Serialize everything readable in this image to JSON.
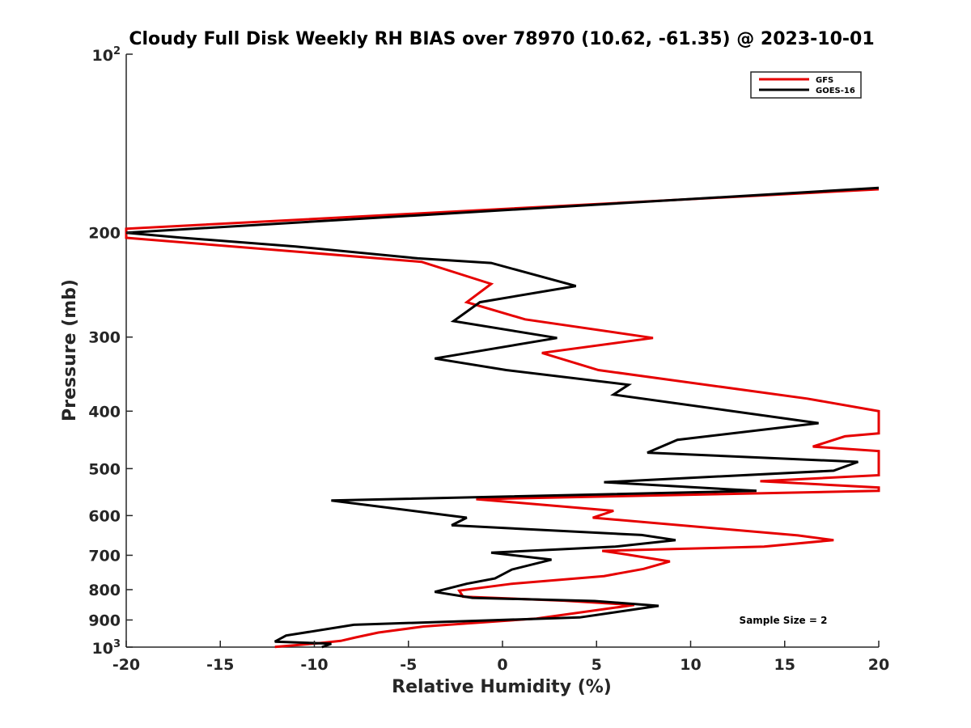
{
  "chart_data": {
    "type": "line",
    "title": "Cloudy Full Disk Weekly RH BIAS over 78970 (10.62, -61.35) @ 2023-10-01",
    "xlabel": "Relative Humidity (%)",
    "ylabel": "Pressure (mb)",
    "xlim": [
      -20,
      20
    ],
    "ylim": [
      100,
      1000
    ],
    "yscale": "log",
    "y_reversed": true,
    "grid": false,
    "legend_position": "top-right",
    "x_ticks": [
      "-20",
      "-15",
      "-10",
      "-5",
      "0",
      "5",
      "10",
      "15",
      "20"
    ],
    "y_ticks": [
      {
        "value": 100,
        "base": "10",
        "exp": "2"
      },
      {
        "value": 200,
        "label": "200"
      },
      {
        "value": 300,
        "label": "300"
      },
      {
        "value": 400,
        "label": "400"
      },
      {
        "value": 500,
        "label": "500"
      },
      {
        "value": 600,
        "label": "600"
      },
      {
        "value": 700,
        "label": "700"
      },
      {
        "value": 800,
        "label": "800"
      },
      {
        "value": 900,
        "label": "900"
      },
      {
        "value": 1000,
        "base": "10",
        "exp": "3"
      }
    ],
    "series": [
      {
        "name": "GFS",
        "color": "#e60000",
        "points": [
          [
            20,
            169
          ],
          [
            -20,
            197
          ],
          [
            -20,
            204
          ],
          [
            -4.3,
            224
          ],
          [
            -0.6,
            244
          ],
          [
            -1.9,
            262
          ],
          [
            1.2,
            280
          ],
          [
            8.0,
            301
          ],
          [
            2.1,
            319
          ],
          [
            5.1,
            341
          ],
          [
            16.2,
            381
          ],
          [
            20,
            400
          ],
          [
            20,
            436
          ],
          [
            18.2,
            441
          ],
          [
            16.5,
            459
          ],
          [
            20,
            467
          ],
          [
            20,
            513
          ],
          [
            13.7,
            525
          ],
          [
            20,
            538
          ],
          [
            20,
            545
          ],
          [
            -1.4,
            563
          ],
          [
            5.9,
            589
          ],
          [
            4.8,
            605
          ],
          [
            15.7,
            648
          ],
          [
            17.6,
            660
          ],
          [
            13.9,
            677
          ],
          [
            5.3,
            688
          ],
          [
            6.6,
            698
          ],
          [
            8.9,
            717
          ],
          [
            7.5,
            738
          ],
          [
            5.4,
            759
          ],
          [
            0.5,
            782
          ],
          [
            -2.3,
            803
          ],
          [
            -2.1,
            822
          ],
          [
            3.3,
            835
          ],
          [
            7.0,
            849
          ],
          [
            1.8,
            895
          ],
          [
            -4.2,
            923
          ],
          [
            -6.6,
            945
          ],
          [
            -7.8,
            963
          ],
          [
            -8.6,
            976
          ],
          [
            -9.9,
            986
          ],
          [
            -12.1,
            999
          ]
        ]
      },
      {
        "name": "GOES-16",
        "color": "#000000",
        "points": [
          [
            20,
            168
          ],
          [
            -20,
            200
          ],
          [
            -17,
            204
          ],
          [
            -11,
            211
          ],
          [
            -4.5,
            221
          ],
          [
            -0.6,
            225
          ],
          [
            3.9,
            246
          ],
          [
            -1.2,
            262
          ],
          [
            -2.6,
            282
          ],
          [
            2.9,
            301
          ],
          [
            -3.6,
            326
          ],
          [
            0.2,
            341
          ],
          [
            6.7,
            361
          ],
          [
            5.9,
            375
          ],
          [
            16.8,
            419
          ],
          [
            9.3,
            447
          ],
          [
            7.7,
            470
          ],
          [
            18.9,
            487
          ],
          [
            17.6,
            504
          ],
          [
            5.4,
            527
          ],
          [
            13.5,
            545
          ],
          [
            -9.1,
            566
          ],
          [
            -1.9,
            605
          ],
          [
            -2.7,
            623
          ],
          [
            7.4,
            647
          ],
          [
            9.2,
            660
          ],
          [
            6.0,
            677
          ],
          [
            -0.6,
            693
          ],
          [
            2.6,
            712
          ],
          [
            0.5,
            740
          ],
          [
            -0.4,
            766
          ],
          [
            -1.9,
            782
          ],
          [
            -3.6,
            807
          ],
          [
            -1.6,
            826
          ],
          [
            4.9,
            836
          ],
          [
            8.3,
            852
          ],
          [
            4.1,
            891
          ],
          [
            -7.9,
            917
          ],
          [
            -11.5,
            956
          ],
          [
            -12.1,
            979
          ],
          [
            -9.1,
            987
          ],
          [
            -9.6,
            1000
          ]
        ]
      }
    ],
    "annotation": "Sample Size = 2"
  }
}
